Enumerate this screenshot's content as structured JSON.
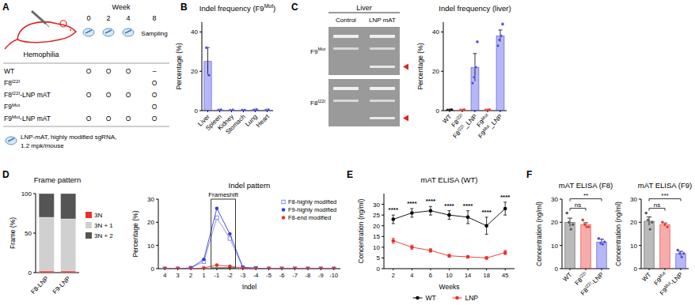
{
  "panel_labels": [
    "A",
    "B",
    "C",
    "D",
    "E",
    "F"
  ],
  "schematic": {
    "label": "Hemophilia",
    "week_header": "Week",
    "weeks": [
      0,
      2,
      4,
      8
    ],
    "sampling": "Sampling",
    "rows": [
      {
        "label": "WT",
        "marks": [
          "O",
          "O",
          "O",
          "–"
        ]
      },
      {
        "label": "F8I22I",
        "marks": [
          null,
          null,
          null,
          "O"
        ]
      },
      {
        "label": "F8I22I-LNP mAT",
        "marks": [
          "O",
          "O",
          "O",
          "O"
        ]
      },
      {
        "label": "F9Mut",
        "marks": [
          null,
          null,
          null,
          "O"
        ]
      },
      {
        "label": "F9Mut-LNP mAT",
        "marks": [
          "O",
          "O",
          "O",
          "O"
        ]
      }
    ],
    "legend_lines": [
      "LNP-mAT, highly modified sgRNA,",
      "1.2 mpk/mouse"
    ]
  },
  "gel": {
    "tissue": "Liver",
    "lanes": [
      "Control",
      "LNP mAT"
    ],
    "targets": [
      "F9Mut",
      "F8I22I"
    ]
  },
  "chart_data": [
    {
      "type": "bar",
      "title": "Indel frequency (F9Mut)",
      "ylabel": "Percentage (%)",
      "categories": [
        "Liver",
        "Spleen",
        "Kidney",
        "Stomach",
        "Lung",
        "Heart"
      ],
      "values": [
        25,
        0.3,
        0.2,
        0.2,
        0.4,
        0.3
      ],
      "errors": [
        7,
        0.1,
        0.1,
        0.1,
        0.1,
        0.1
      ],
      "points": [
        [
          32,
          18
        ],
        [
          0.2,
          0.4
        ],
        [
          0.1,
          0.3
        ],
        [
          0.2,
          0.2
        ],
        [
          0.3,
          0.5
        ],
        [
          0.2,
          0.4
        ]
      ],
      "color": "#4a4ae8",
      "ylim": [
        0,
        45
      ],
      "yticks": [
        0,
        20,
        40
      ]
    },
    {
      "type": "bar",
      "title": "Indel frequency (liver)",
      "ylabel": "Percentage (%)",
      "categories": [
        "WT",
        "F8I22I",
        "F8I22I_LNP",
        "F9Mut",
        "F9Mut_LNP"
      ],
      "values": [
        0.3,
        0.3,
        22,
        0.3,
        38
      ],
      "errors": [
        0.1,
        0.1,
        7,
        0.1,
        3
      ],
      "points": [
        [
          0.2,
          0.3,
          0.4
        ],
        [
          0.2,
          0.3,
          0.4
        ],
        [
          14,
          17,
          22,
          35
        ],
        [
          0.2,
          0.3,
          0.4
        ],
        [
          33,
          36,
          38,
          44
        ]
      ],
      "colors": [
        "#000000",
        "#e8302a",
        "#4a4ae8",
        "#e8302a",
        "#4a4ae8"
      ],
      "ylim": [
        0,
        45
      ],
      "yticks": [
        0,
        20,
        40
      ]
    },
    {
      "type": "bar",
      "stacked": true,
      "title": "Frame pattern",
      "ylabel": "Frame (%)",
      "categories": [
        "F8-LNP",
        "F9-LNP"
      ],
      "series": [
        {
          "name": "3N",
          "color": "#e8302a",
          "values": [
            2,
            2
          ]
        },
        {
          "name": "3N + 1",
          "color": "#d0d0d0",
          "values": [
            68,
            66
          ]
        },
        {
          "name": "3N + 2",
          "color": "#555555",
          "values": [
            30,
            32
          ]
        }
      ],
      "ylim": [
        0,
        100
      ],
      "yticks": [
        0,
        50,
        100
      ],
      "legend": "right"
    },
    {
      "type": "line",
      "title": "Indel pattern",
      "ylabel": "Percentage (%)",
      "xlabel": "Indel",
      "categories": [
        "4",
        "3",
        "2",
        "1",
        "-1",
        "-2",
        "-3",
        "-4",
        "-5",
        "-6",
        "-7",
        "-8",
        "-9",
        "-10"
      ],
      "series": [
        {
          "name": "F8-highly modified",
          "color": "#7f8fe8",
          "marker": "open-square",
          "values": [
            0,
            0,
            0.3,
            3,
            22,
            13,
            0.5,
            0.2,
            0,
            0,
            0,
            0,
            0,
            0
          ]
        },
        {
          "name": "F9-highly modified",
          "color": "#3b3be0",
          "marker": "circle",
          "values": [
            0,
            0,
            0.3,
            4,
            26,
            15,
            0.6,
            0.2,
            0,
            0,
            0,
            0,
            0,
            0
          ]
        },
        {
          "name": "F8-end modified",
          "color": "#e8302a",
          "marker": "circle",
          "values": [
            0,
            0,
            0,
            0.3,
            1.5,
            1,
            0.2,
            0,
            0,
            0,
            0,
            0,
            0,
            0
          ]
        }
      ],
      "ylim": [
        0,
        30
      ],
      "yticks": [
        0,
        10,
        20,
        30
      ],
      "legend": "upper right",
      "annotations": [
        {
          "text": "Frameshift",
          "categories": [
            "-1",
            "-2"
          ]
        }
      ]
    },
    {
      "type": "line",
      "title": "mAT ELISA (WT)",
      "ylabel": "Concentration (ng/ml)",
      "xlabel": "Weeks",
      "categories": [
        "2",
        "4",
        "6",
        "10",
        "14",
        "18",
        "45"
      ],
      "series": [
        {
          "name": "WT",
          "color": "#000000",
          "marker": "circle",
          "values": [
            23,
            26,
            27,
            25,
            24,
            20,
            28
          ],
          "errors": [
            2,
            2,
            2,
            2,
            3,
            4,
            3
          ]
        },
        {
          "name": "LNP",
          "color": "#e8302a",
          "marker": "circle",
          "values": [
            13,
            10,
            8.5,
            6,
            5.5,
            5,
            7.5
          ],
          "errors": [
            1.2,
            1,
            0.8,
            0.7,
            0.6,
            0.6,
            1
          ]
        }
      ],
      "significance": [
        "****",
        "****",
        "****",
        "****",
        "****",
        "****",
        "****"
      ],
      "ylim": [
        0,
        35
      ],
      "yticks": [
        0,
        5,
        10,
        15,
        20,
        25,
        30
      ],
      "legend": "bottom"
    },
    {
      "type": "bar",
      "title": "mAT ELISA (F8)",
      "ylabel": "Concentration (ng/ml)",
      "categories": [
        "WT",
        "F8I22I",
        "F8I22I-LNP"
      ],
      "values": [
        20,
        19,
        11.5
      ],
      "errors": [
        1.8,
        0.8,
        1.2
      ],
      "points": [
        [
          24,
          20,
          17,
          19
        ],
        [
          21,
          19,
          18,
          18
        ],
        [
          13,
          11,
          10.5,
          11.5
        ]
      ],
      "colors": [
        "#555555",
        "#e8302a",
        "#4a4ae8"
      ],
      "ylim": [
        0,
        30
      ],
      "yticks": [
        0,
        10,
        20,
        30
      ],
      "significance": [
        {
          "groups": [
            0,
            1
          ],
          "label": "ns"
        },
        {
          "groups": [
            0,
            2
          ],
          "label": "**"
        }
      ]
    },
    {
      "type": "bar",
      "title": "mAT ELISA (F9)",
      "ylabel": "Concentration (ng/ml)",
      "categories": [
        "WT",
        "F9Mut",
        "F9Mut-LNP"
      ],
      "values": [
        20.5,
        19,
        6.5
      ],
      "errors": [
        1.8,
        0.7,
        1
      ],
      "points": [
        [
          24,
          21,
          17,
          20
        ],
        [
          20,
          19,
          18
        ],
        [
          8,
          6.5,
          5,
          6.5
        ]
      ],
      "colors": [
        "#555555",
        "#e8302a",
        "#4a4ae8"
      ],
      "ylim": [
        0,
        30
      ],
      "yticks": [
        0,
        10,
        20,
        30
      ],
      "significance": [
        {
          "groups": [
            0,
            1
          ],
          "label": "ns"
        },
        {
          "groups": [
            0,
            2
          ],
          "label": "***"
        }
      ]
    }
  ]
}
